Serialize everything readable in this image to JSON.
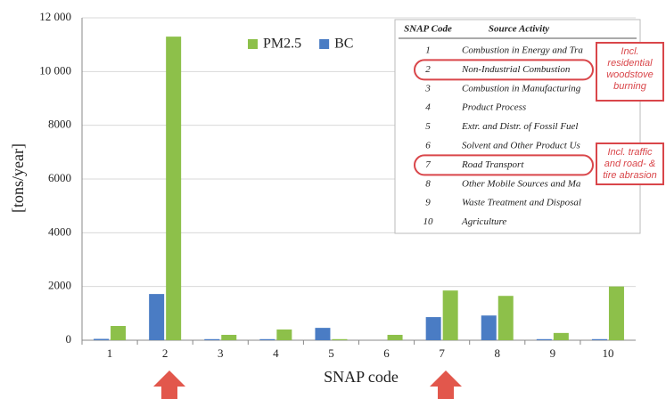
{
  "chart_data": {
    "type": "bar",
    "categories": [
      "1",
      "2",
      "3",
      "4",
      "5",
      "6",
      "7",
      "8",
      "9",
      "10"
    ],
    "series": [
      {
        "name": "BC",
        "color": "#4a7cc4",
        "values": [
          50,
          1720,
          40,
          40,
          460,
          0,
          860,
          920,
          40,
          40
        ]
      },
      {
        "name": "PM2.5",
        "color": "#8dc04a",
        "values": [
          530,
          11300,
          200,
          400,
          40,
          200,
          1850,
          1650,
          270,
          2000
        ]
      }
    ],
    "ylim": [
      0,
      12000
    ],
    "yticks": [
      0,
      2000,
      4000,
      6000,
      8000,
      {
        "value": 10000,
        "label": "10 000"
      },
      {
        "value": 12000,
        "label": "12 000"
      }
    ],
    "y_label": "[tons/year]",
    "x_label": "SNAP code",
    "grid": true
  },
  "inset_table": {
    "headers": [
      "SNAP Code",
      "Source Activity"
    ],
    "rows": [
      [
        "1",
        "Combustion in Energy and Tra"
      ],
      [
        "2",
        "Non-Industrial Combustion"
      ],
      [
        "3",
        "Combustion in Manufacturing"
      ],
      [
        "4",
        "Product Process"
      ],
      [
        "5",
        "Extr. and Distr. of Fossil Fuel"
      ],
      [
        "6",
        "Solvent and Other Product Us"
      ],
      [
        "7",
        "Road Transport"
      ],
      [
        "8",
        "Other Mobile Sources and Ma"
      ],
      [
        "9",
        "Waste Treatment and Disposal"
      ],
      [
        "10",
        "Agriculture"
      ]
    ]
  },
  "annotations": [
    "Incl. residential woodstove burning",
    "Incl. traffic and road- & tire abrasion"
  ]
}
